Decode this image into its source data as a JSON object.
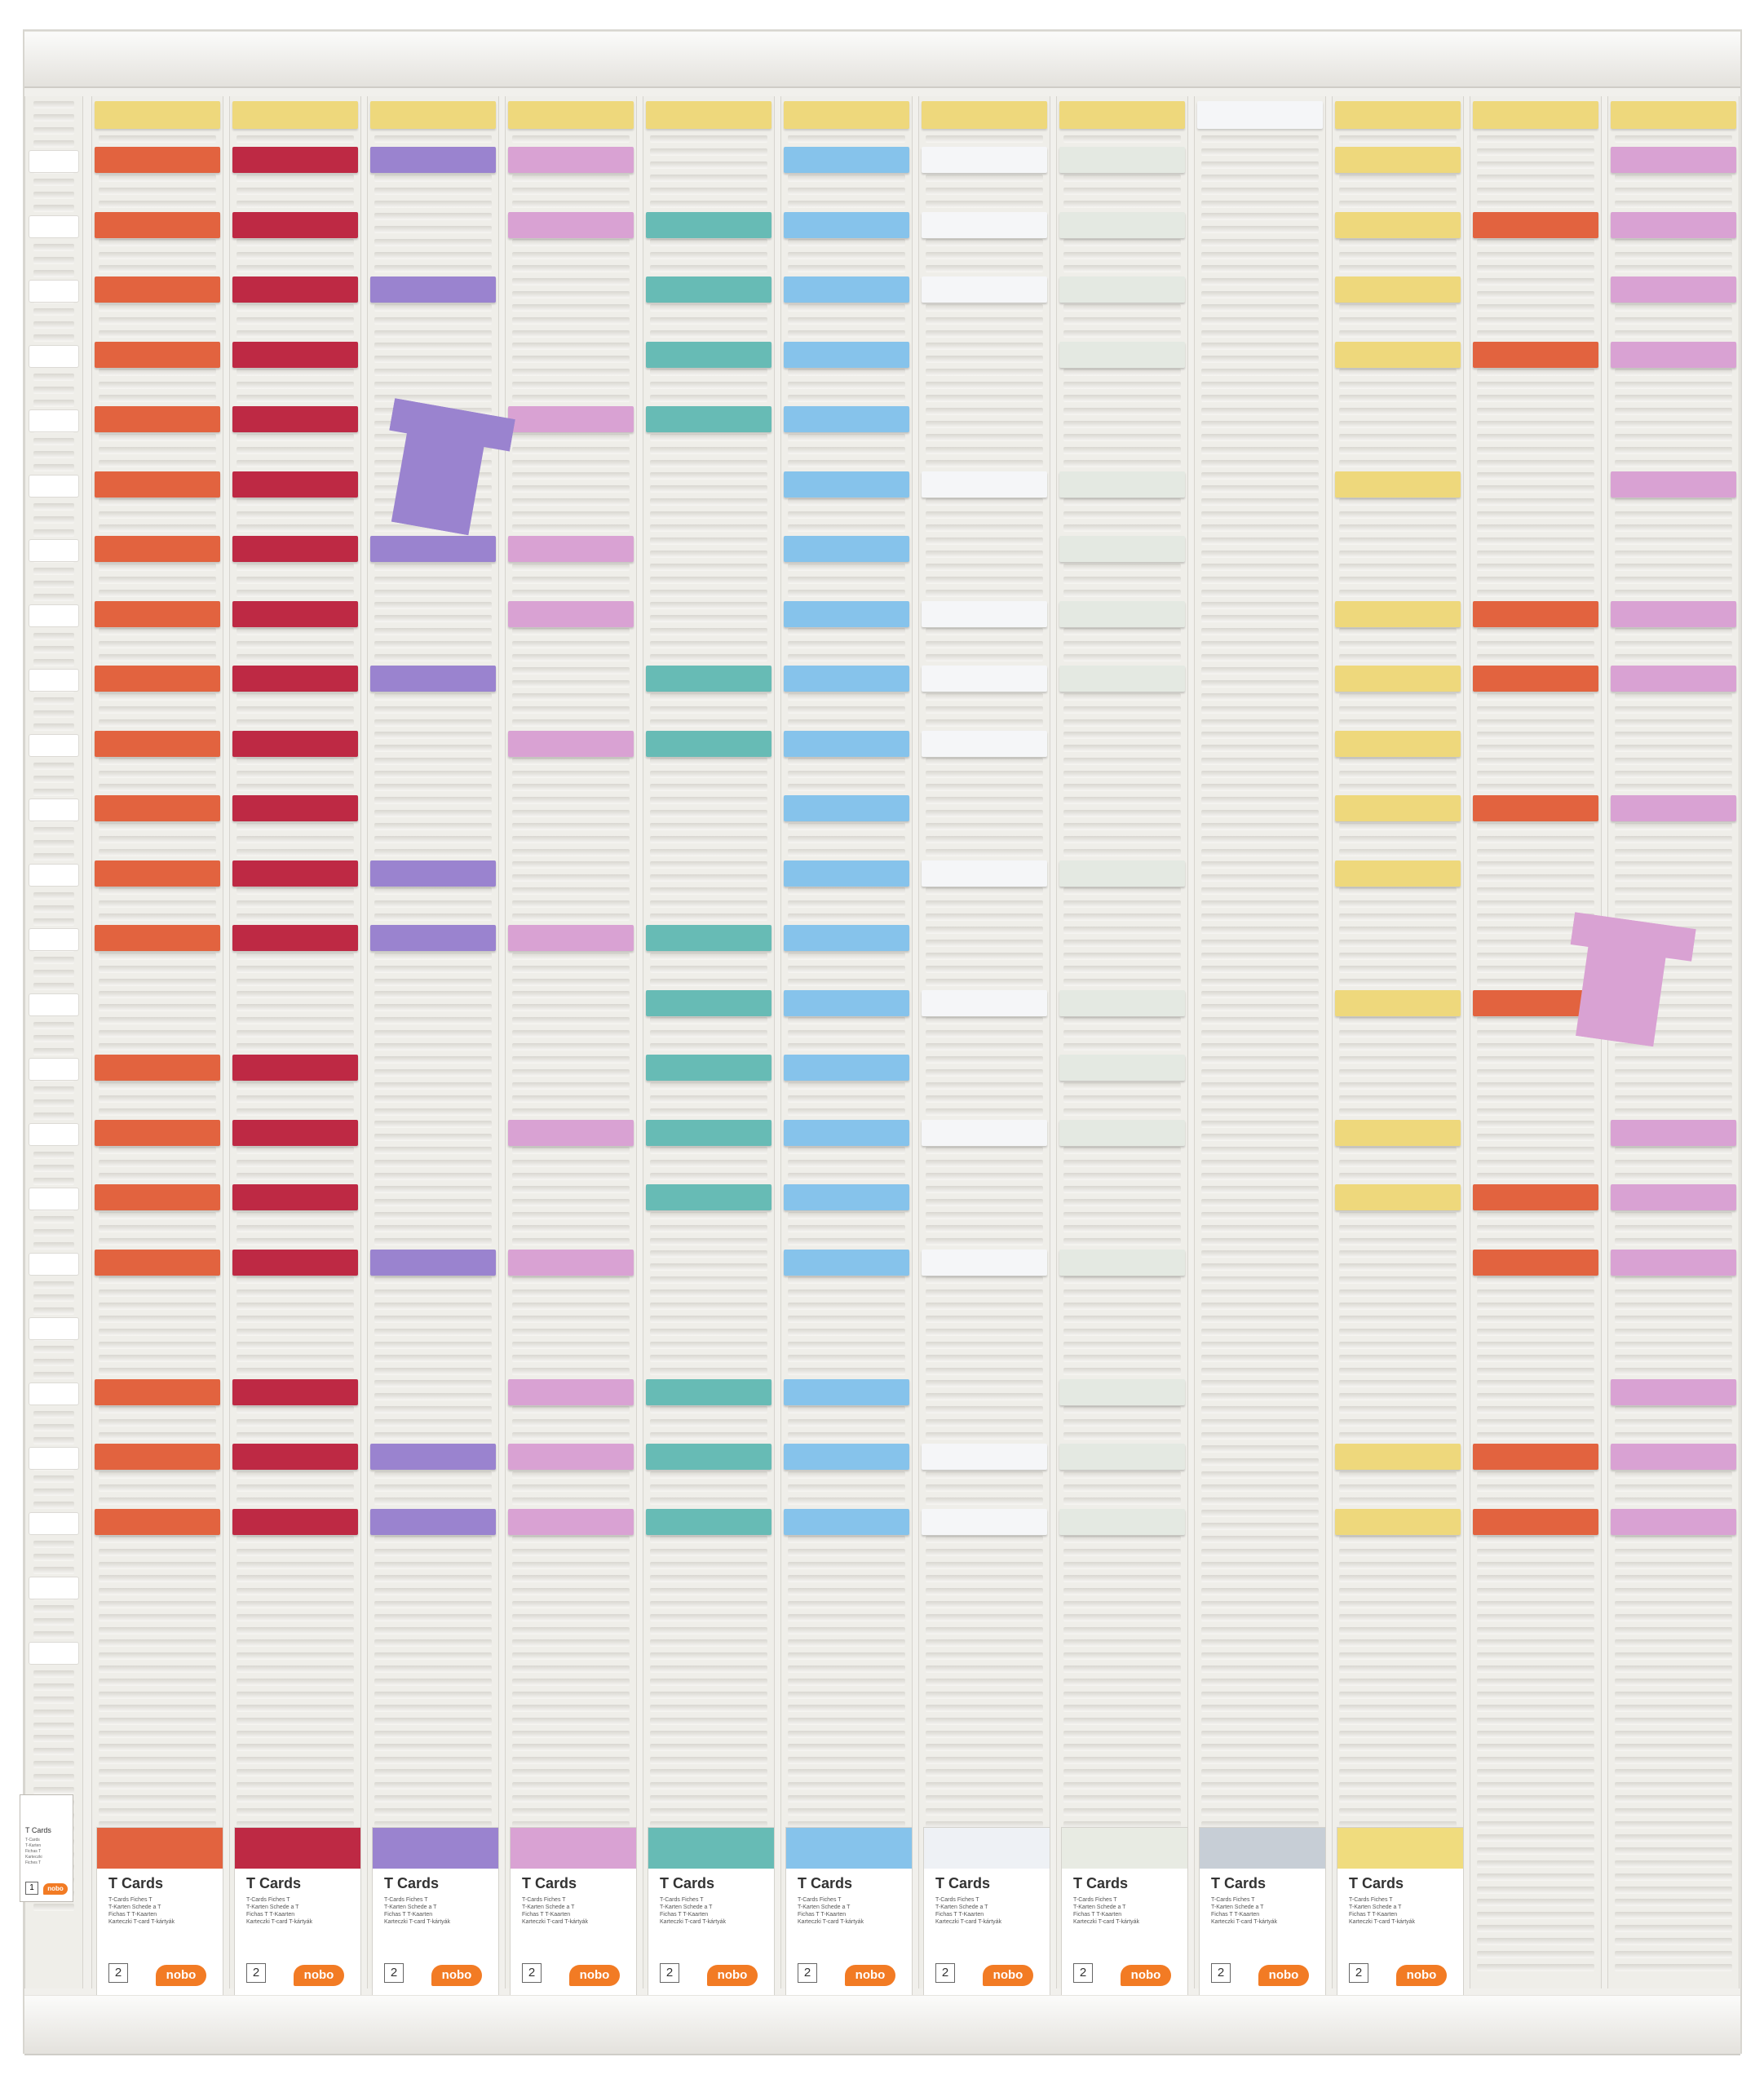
{
  "palette": {
    "yellow": "#eed87c",
    "orange": "#e2633f",
    "red": "#be2944",
    "purple": "#9a83cf",
    "pink": "#d9a2d3",
    "teal": "#67bbb5",
    "blue": "#86c3eb",
    "white": "#f5f6f8",
    "mint": "#e4e9e2",
    "grey": "#c5ccd3"
  },
  "columns": [
    {
      "header": "yellow",
      "color": "orange",
      "rows": [
        1,
        2,
        3,
        4,
        5,
        6,
        7,
        8,
        9,
        10,
        11,
        12,
        13,
        15,
        16,
        17,
        18,
        20,
        21,
        22
      ]
    },
    {
      "header": "yellow",
      "color": "red",
      "rows": [
        1,
        2,
        3,
        4,
        5,
        6,
        7,
        8,
        9,
        10,
        11,
        12,
        13,
        15,
        16,
        17,
        18,
        20,
        21,
        22
      ]
    },
    {
      "header": "yellow",
      "color": "purple",
      "rows": [
        1,
        3,
        7,
        9,
        12,
        13,
        18,
        21,
        22
      ]
    },
    {
      "header": "yellow",
      "color": "pink",
      "rows": [
        1,
        2,
        5,
        7,
        8,
        10,
        13,
        16,
        18,
        20,
        21,
        22
      ]
    },
    {
      "header": "yellow",
      "color": "teal",
      "rows": [
        2,
        3,
        4,
        5,
        9,
        10,
        13,
        14,
        15,
        16,
        17,
        20,
        21,
        22
      ]
    },
    {
      "header": "yellow",
      "color": "blue",
      "rows": [
        1,
        2,
        3,
        4,
        5,
        6,
        7,
        8,
        9,
        10,
        11,
        12,
        13,
        14,
        15,
        16,
        17,
        18,
        20,
        21,
        22
      ]
    },
    {
      "header": "yellow",
      "color": "white",
      "rows": [
        1,
        2,
        3,
        6,
        8,
        9,
        10,
        12,
        14,
        16,
        18,
        21,
        22
      ]
    },
    {
      "header": "yellow",
      "color": "mint",
      "rows": [
        1,
        2,
        3,
        4,
        6,
        7,
        8,
        9,
        12,
        14,
        15,
        16,
        18,
        20,
        21,
        22
      ]
    },
    {
      "header": "white",
      "color": "mint",
      "rows": []
    },
    {
      "header": "yellow",
      "color": "yellow",
      "rows": [
        1,
        2,
        3,
        4,
        6,
        8,
        9,
        10,
        11,
        12,
        14,
        16,
        17,
        21,
        22
      ]
    },
    {
      "header": "yellow",
      "color": "orange",
      "rows": [
        2,
        4,
        8,
        9,
        11,
        14,
        17,
        18,
        21,
        22
      ]
    },
    {
      "header": "yellow",
      "color": "pink",
      "rows": [
        1,
        2,
        3,
        4,
        6,
        8,
        9,
        11,
        16,
        17,
        18,
        20,
        21,
        22
      ]
    }
  ],
  "loose_cards": [
    {
      "color": "purple",
      "angle": "rotated"
    },
    {
      "color": "pink",
      "angle": "rotated"
    }
  ],
  "packs": [
    {
      "color": "#e2633f",
      "title": "T Cards",
      "count": "2",
      "brand": "nobo",
      "lines": [
        "T-Cards  Fiches T",
        "T-Karten  Schede a T",
        "Fichas T  T-Kaarten",
        "Karteczki T-card  T-kártyák"
      ]
    },
    {
      "color": "#be2944",
      "title": "T Cards",
      "count": "2",
      "brand": "nobo",
      "lines": [
        "T-Cards  Fiches T",
        "T-Karten  Schede a T",
        "Fichas T  T-Kaarten",
        "Karteczki T-card  T-kártyák"
      ]
    },
    {
      "color": "#9a83cf",
      "title": "T Cards",
      "count": "2",
      "brand": "nobo",
      "lines": [
        "T-Cards  Fiches T",
        "T-Karten  Schede a T",
        "Fichas T  T-Kaarten",
        "Karteczki T-card  T-kártyák"
      ]
    },
    {
      "color": "#d9a2d3",
      "title": "T Cards",
      "count": "2",
      "brand": "nobo",
      "lines": [
        "T-Cards  Fiches T",
        "T-Karten  Schede a T",
        "Fichas T  T-Kaarten",
        "Karteczki T-card  T-kártyák"
      ]
    },
    {
      "color": "#67bbb5",
      "title": "T Cards",
      "count": "2",
      "brand": "nobo",
      "lines": [
        "T-Cards  Fiches T",
        "T-Karten  Schede a T",
        "Fichas T  T-Kaarten",
        "Karteczki T-card  T-kártyák"
      ]
    },
    {
      "color": "#86c3eb",
      "title": "T Cards",
      "count": "2",
      "brand": "nobo",
      "lines": [
        "T-Cards  Fiches T",
        "T-Karten  Schede a T",
        "Fichas T  T-Kaarten",
        "Karteczki T-card  T-kártyák"
      ]
    },
    {
      "color": "#eef1f5",
      "title": "T Cards",
      "count": "2",
      "brand": "nobo",
      "lines": [
        "T-Cards  Fiches T",
        "T-Karten  Schede a T",
        "Fichas T  T-Kaarten",
        "Karteczki T-card  T-kártyák"
      ]
    },
    {
      "color": "#e8ebe3",
      "title": "T Cards",
      "count": "2",
      "brand": "nobo",
      "lines": [
        "T-Cards  Fiches T",
        "T-Karten  Schede a T",
        "Fichas T  T-Kaarten",
        "Karteczki T-card  T-kártyák"
      ]
    },
    {
      "color": "#c7ced6",
      "title": "T Cards",
      "count": "2",
      "brand": "nobo",
      "lines": [
        "T-Cards  Fiches T",
        "T-Karten  Schede a T",
        "Fichas T  T-Kaarten",
        "Karteczki T-card  T-kártyák"
      ]
    },
    {
      "color": "#f0dc7e",
      "title": "T Cards",
      "count": "2",
      "brand": "nobo",
      "lines": [
        "T-Cards  Fiches T",
        "T-Karten  Schede a T",
        "Fichas T  T-Kaarten",
        "Karteczki T-card  T-kártyák"
      ]
    }
  ],
  "small_pack": {
    "title": "T Cards",
    "count": "1",
    "brand": "nobo",
    "lines": [
      "T-Cards",
      "T-Karten",
      "Fichas T",
      "Karteczki",
      "Fiches T"
    ]
  }
}
